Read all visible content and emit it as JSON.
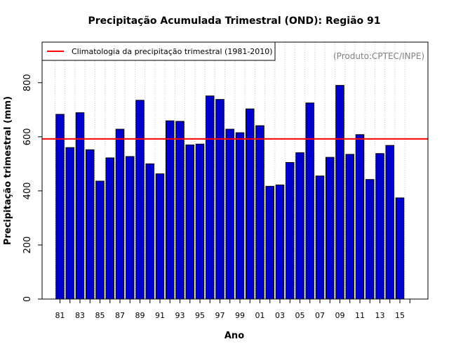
{
  "chart_data": {
    "type": "bar",
    "title": "Precipitação Acumulada Trimestral (OND): Região 91",
    "xlabel": "Ano",
    "ylabel": "Precipitação trimestral (mm)",
    "ylim": [
      0,
      950
    ],
    "yticks": [
      0,
      200,
      400,
      600,
      800
    ],
    "grid": "vertical-dotted",
    "categories": [
      "81",
      "82",
      "83",
      "84",
      "85",
      "86",
      "87",
      "88",
      "89",
      "90",
      "91",
      "92",
      "93",
      "94",
      "95",
      "96",
      "97",
      "98",
      "99",
      "00",
      "01",
      "02",
      "03",
      "04",
      "05",
      "06",
      "07",
      "08",
      "09",
      "10",
      "11",
      "12",
      "13",
      "14",
      "15"
    ],
    "xtick_labels": [
      "81",
      "83",
      "85",
      "87",
      "89",
      "91",
      "93",
      "95",
      "97",
      "99",
      "01",
      "03",
      "05",
      "07",
      "09",
      "11",
      "13",
      "15"
    ],
    "values": [
      683,
      560,
      689,
      552,
      436,
      522,
      628,
      527,
      735,
      500,
      463,
      659,
      657,
      570,
      573,
      751,
      738,
      628,
      615,
      703,
      641,
      417,
      422,
      505,
      541,
      725,
      455,
      524,
      790,
      535,
      608,
      442,
      538,
      568,
      374
    ],
    "bar_color": "#0000cc",
    "reference_line": {
      "name": "Climatologia da precipitação trimestral (1981-2010)",
      "value": 592,
      "color": "#ff0000"
    },
    "legend_position": "top-left",
    "credit": "(Produto:CPTEC/INPE)"
  }
}
